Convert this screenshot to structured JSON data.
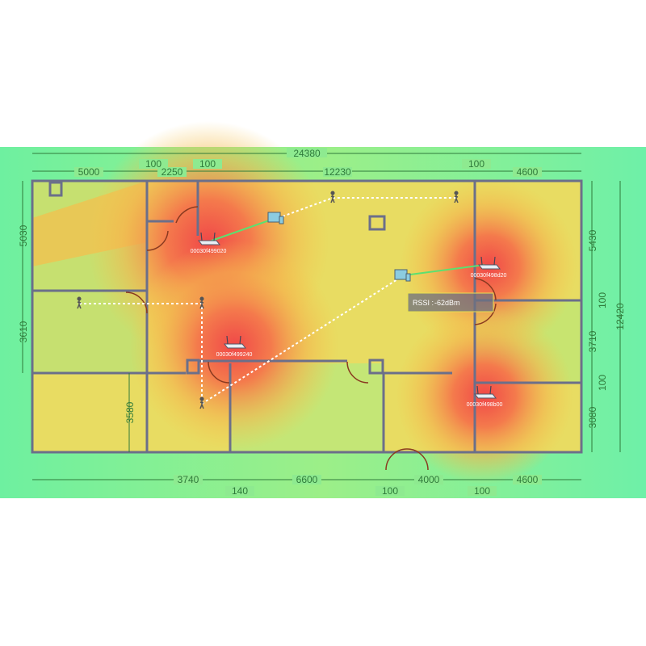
{
  "dimensions": {
    "top_total": "24380",
    "top": [
      "5000",
      "100",
      "2250",
      "100",
      "12230",
      "100",
      "4600"
    ],
    "left": [
      "5030",
      "3610",
      "3580"
    ],
    "right": [
      "5430",
      "100",
      "3710",
      "100",
      "3080"
    ],
    "right_total": "12420",
    "bottom": [
      "3740",
      "140",
      "6600",
      "100",
      "4000",
      "100",
      "4600"
    ]
  },
  "access_points": [
    {
      "id": "00030f499020",
      "icon": "router-icon"
    },
    {
      "id": "00030f498d20",
      "icon": "router-icon"
    },
    {
      "id": "00030f499240",
      "icon": "router-icon"
    },
    {
      "id": "00030f498b00",
      "icon": "router-icon"
    }
  ],
  "tooltip": {
    "label": "RSSI :",
    "value": "-62dBm"
  },
  "colors": {
    "strong": "#f0504a",
    "medium": "#f5c84e",
    "weak": "#b8ec78",
    "none": "#6ef0a4",
    "wall": "#6b6f8a",
    "dimension": "#2f7a3a"
  }
}
